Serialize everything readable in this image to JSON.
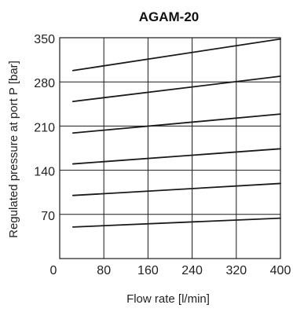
{
  "chart_data": {
    "type": "line",
    "title": "AGAM-20",
    "xlabel": "Flow rate [l/min]",
    "ylabel": "Regulated pressure at port P [bar]",
    "xlim": [
      0,
      400
    ],
    "ylim": [
      0,
      350
    ],
    "xticks": [
      0,
      80,
      160,
      240,
      320,
      400
    ],
    "yticks": [
      70,
      140,
      210,
      280,
      350
    ],
    "grid": true,
    "series": [
      {
        "x": [
          24,
          400
        ],
        "y": [
          298,
          348
        ]
      },
      {
        "x": [
          24,
          400
        ],
        "y": [
          249,
          289
        ]
      },
      {
        "x": [
          24,
          400
        ],
        "y": [
          199,
          229
        ]
      },
      {
        "x": [
          24,
          400
        ],
        "y": [
          150,
          174
        ]
      },
      {
        "x": [
          24,
          400
        ],
        "y": [
          100,
          119
        ]
      },
      {
        "x": [
          24,
          400
        ],
        "y": [
          50,
          64
        ]
      }
    ],
    "colors": {
      "line": "#1a1a1a",
      "grid": "#1a1a1a"
    }
  }
}
